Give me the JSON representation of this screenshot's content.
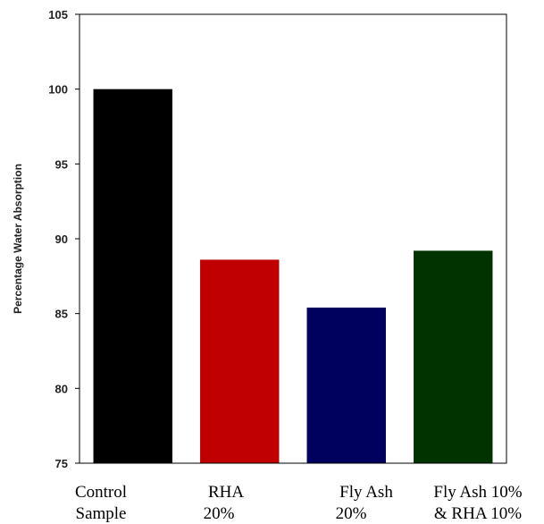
{
  "chart_data": {
    "type": "bar",
    "ylabel": "Percentage Water Absorption",
    "xlabel": "",
    "ylim": [
      75,
      105
    ],
    "yticks": [
      75,
      80,
      85,
      90,
      95,
      100,
      105
    ],
    "grid": false,
    "categories": [
      [
        "Control",
        "Sample"
      ],
      [
        "RHA",
        "20%"
      ],
      [
        "Fly Ash",
        "20%"
      ],
      [
        "Fly Ash 10%",
        "& RHA 10%"
      ]
    ],
    "values": [
      100.0,
      88.6,
      85.4,
      89.2
    ],
    "colors": [
      "#000000",
      "#c00000",
      "#00005e",
      "#003300"
    ]
  }
}
